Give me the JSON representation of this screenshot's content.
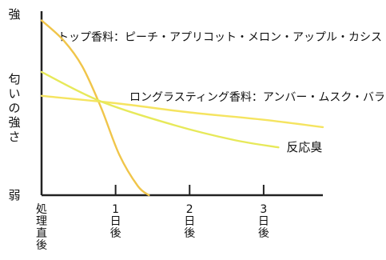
{
  "chart_data": {
    "type": "line",
    "y_axis": {
      "top_label": "強",
      "bottom_label": "弱",
      "label": "匂いの強さ",
      "ylim": [
        0,
        100
      ]
    },
    "x_axis": {
      "ticks": [
        "処理直後",
        "1日後",
        "2日後",
        "3日後"
      ],
      "xlim": [
        0,
        3.8
      ],
      "tick_values": [
        0,
        1,
        2,
        3
      ]
    },
    "annotations": {
      "top_note": "トップ香料：ピーチ・アプリコット・メロン・アップル・カシス",
      "long_note": "ロングラスティング香料：アンバー・ムスク・バラ"
    },
    "series": [
      {
        "name": "トップ香料",
        "color": "#F0C54A",
        "points": [
          [
            0,
            95
          ],
          [
            0.3,
            84
          ],
          [
            0.55,
            70
          ],
          [
            0.8,
            48
          ],
          [
            1.05,
            22
          ],
          [
            1.3,
            5
          ],
          [
            1.45,
            0
          ]
        ]
      },
      {
        "name": "ロングラスティング香料",
        "color": "#F5E460",
        "points": [
          [
            0,
            54
          ],
          [
            1.0,
            50
          ],
          [
            2.0,
            45
          ],
          [
            3.0,
            41
          ],
          [
            3.8,
            37
          ]
        ]
      },
      {
        "name": "反応臭",
        "color": "#E7E95A",
        "points": [
          [
            0,
            67
          ],
          [
            0.8,
            51
          ],
          [
            1.8,
            38
          ],
          [
            2.6,
            30
          ],
          [
            3.2,
            26
          ]
        ],
        "label": "反応臭"
      }
    ]
  }
}
